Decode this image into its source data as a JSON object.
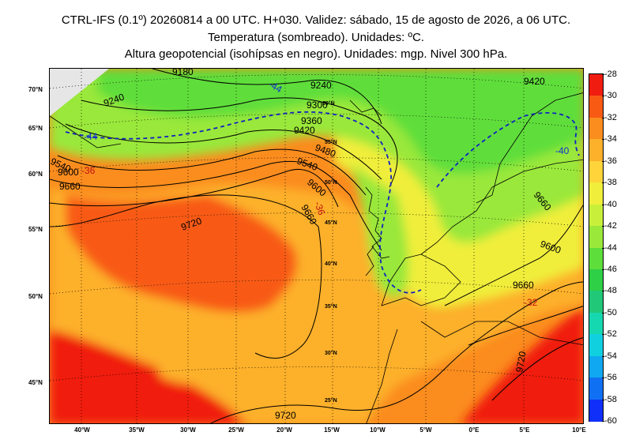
{
  "header": {
    "line1": "CTRL-IFS (0.1º) 20260814 a 00 UTC. H+030. Validez: sábado, 15 de agosto de 2026, a 06 UTC.",
    "line2": "Temperatura (sombreado). Unidades: ºC.",
    "line3": "Altura geopotencial (isohípsas en negro). Unidades: mgp. Nivel 300 hPa."
  },
  "lat_labels": [
    "70°N",
    "65°N",
    "60°N",
    "55°N",
    "50°N",
    "45°N"
  ],
  "lon_labels": [
    "40°W",
    "35°W",
    "30°W",
    "25°W",
    "20°W",
    "15°W",
    "10°W",
    "5°W",
    "0°E",
    "5°E",
    "10°E"
  ],
  "inner_lat_labels": [
    "60°N",
    "55°N",
    "50°N",
    "45°N",
    "40°N",
    "35°N",
    "30°N",
    "25°N"
  ],
  "geopotential_labels": [
    "9180",
    "9240",
    "9300",
    "9360",
    "9420",
    "9480",
    "9540",
    "9600",
    "9660",
    "9720"
  ],
  "temperature_labels": [
    "-44",
    "-40",
    "-36",
    "-32"
  ],
  "colorbar": {
    "ticks": [
      "-28",
      "-30",
      "-32",
      "-34",
      "-36",
      "-38",
      "-40",
      "-42",
      "-44",
      "-46",
      "-48",
      "-50",
      "-52",
      "-54",
      "-56",
      "-58",
      "-60"
    ],
    "colors": [
      "#f01c10",
      "#f85a14",
      "#fb8c1e",
      "#fdb02a",
      "#fed43a",
      "#f0ee3a",
      "#c8f03a",
      "#9ae83a",
      "#5ede3a",
      "#2ed046",
      "#20c878",
      "#16d8b0",
      "#10d0e0",
      "#10a8f0",
      "#1070f4",
      "#1030fa"
    ]
  }
}
